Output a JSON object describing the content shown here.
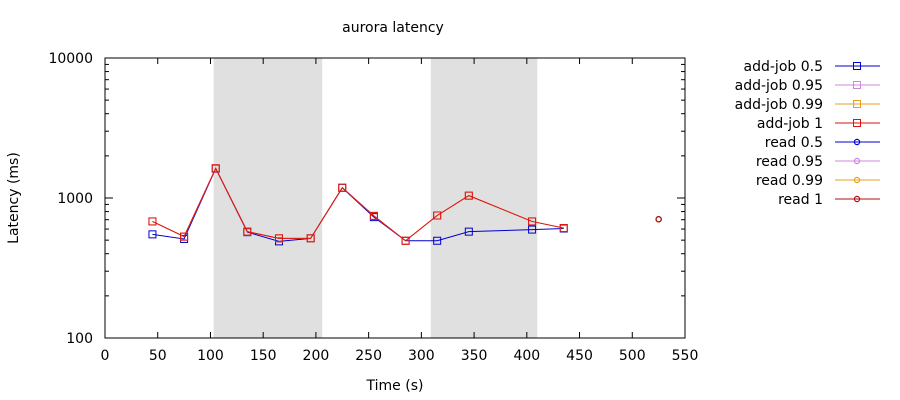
{
  "chart_data": {
    "type": "line",
    "title": "aurora latency",
    "xlabel": "Time (s)",
    "ylabel": "Latency (ms)",
    "xlim": [
      0,
      550
    ],
    "ylim": [
      100,
      10000
    ],
    "yscale": "log",
    "xticks": [
      0,
      50,
      100,
      150,
      200,
      250,
      300,
      350,
      400,
      450,
      500,
      550
    ],
    "yticks": [
      100,
      1000,
      10000
    ],
    "xtick_labels": [
      "0",
      "50",
      "100",
      "150",
      "200",
      "250",
      "300",
      "350",
      "400",
      "450",
      "500",
      "550"
    ],
    "ytick_labels": [
      "100",
      "1000",
      "10000"
    ],
    "grid": false,
    "legend_position": "outside-right",
    "shaded_regions": [
      {
        "x": [
          103,
          206
        ],
        "color": "#e0e0e0"
      },
      {
        "x": [
          309,
          410
        ],
        "color": "#e0e0e0"
      }
    ],
    "series": [
      {
        "name": "add-job 0.5",
        "color": "#0000cc",
        "marker": "square",
        "x": [
          45,
          75,
          105,
          135,
          165,
          195,
          225,
          255,
          285,
          315,
          345,
          405,
          435
        ],
        "y": [
          550,
          510,
          1620,
          570,
          490,
          515,
          1180,
          730,
          495,
          495,
          575,
          595,
          605
        ]
      },
      {
        "name": "add-job 0.95",
        "color": "#cc88dd",
        "marker": "square",
        "x": [
          45,
          75,
          105,
          135,
          165,
          195,
          225,
          255,
          285,
          315,
          345,
          405,
          435
        ],
        "y": [
          680,
          530,
          1630,
          575,
          515,
          515,
          1185,
          745,
          495,
          750,
          1040,
          680,
          610
        ]
      },
      {
        "name": "add-job 0.99",
        "color": "#e8a020",
        "marker": "square",
        "x": [
          45,
          75,
          105,
          135,
          165,
          195,
          225,
          255,
          285,
          315,
          345,
          405,
          435
        ],
        "y": [
          680,
          530,
          1630,
          575,
          515,
          515,
          1185,
          745,
          495,
          750,
          1040,
          680,
          610
        ]
      },
      {
        "name": "add-job 1",
        "color": "#dd1111",
        "marker": "square",
        "x": [
          45,
          75,
          105,
          135,
          165,
          195,
          225,
          255,
          285,
          315,
          345,
          405,
          435
        ],
        "y": [
          680,
          530,
          1630,
          575,
          515,
          515,
          1185,
          745,
          495,
          750,
          1040,
          680,
          610
        ]
      },
      {
        "name": "read 0.5",
        "color": "#0000cc",
        "marker": "circle",
        "x": [
          525
        ],
        "y": [
          705
        ]
      },
      {
        "name": "read 0.95",
        "color": "#cc88dd",
        "marker": "circle",
        "x": [
          525
        ],
        "y": [
          705
        ]
      },
      {
        "name": "read 0.99",
        "color": "#e8a020",
        "marker": "circle",
        "x": [
          525
        ],
        "y": [
          705
        ]
      },
      {
        "name": "read 1",
        "color": "#aa1111",
        "marker": "circle",
        "x": [
          525
        ],
        "y": [
          705
        ]
      }
    ]
  }
}
